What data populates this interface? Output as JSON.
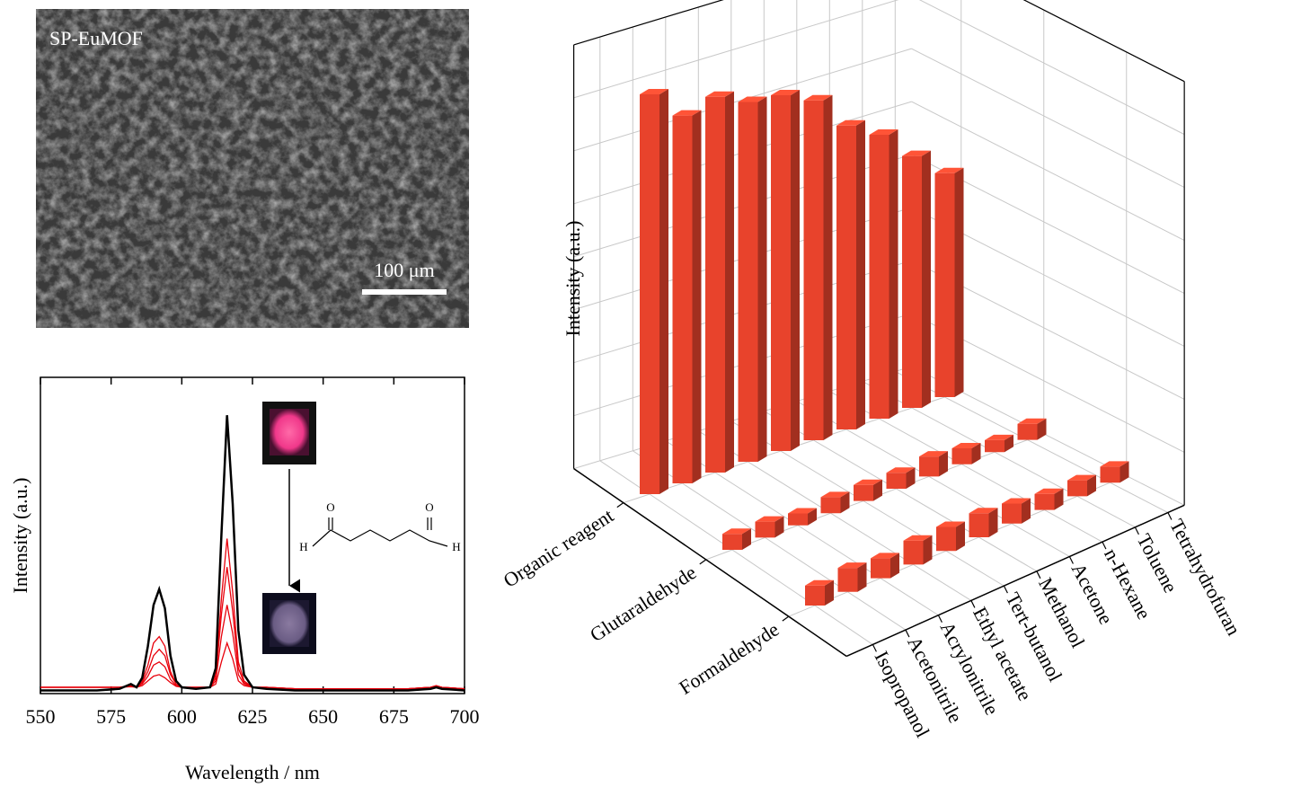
{
  "image": {
    "label": "SP-EuMOF",
    "scale_bar": "100 μm"
  },
  "chart_data": [
    {
      "type": "line",
      "xlabel": "Wavelength / nm",
      "ylabel": "Intensity (a.u.)",
      "xlim": [
        550,
        700
      ],
      "xticks": [
        550,
        575,
        600,
        625,
        650,
        675,
        700
      ],
      "ylim": [
        0,
        100
      ],
      "annotations": [
        "O",
        "O",
        "H",
        "H"
      ],
      "x": [
        550,
        560,
        570,
        578,
        582,
        584,
        586,
        588,
        590,
        592,
        594,
        596,
        598,
        600,
        605,
        610,
        612,
        614,
        616,
        618,
        620,
        622,
        625,
        630,
        640,
        660,
        680,
        688,
        690,
        692,
        700
      ],
      "series": [
        {
          "color": "#e8000b",
          "values": [
            2,
            2,
            2,
            2,
            2.5,
            2,
            4,
            9,
            16,
            18,
            15,
            7,
            3,
            2,
            2,
            2,
            6,
            30,
            49,
            32,
            10,
            4,
            2,
            2,
            1.5,
            1.5,
            1.5,
            2,
            2.5,
            2,
            1.5
          ]
        },
        {
          "color": "#e8000b",
          "values": [
            2,
            2,
            2,
            2,
            2.5,
            2,
            3.5,
            7,
            12,
            14,
            12,
            6,
            3,
            2,
            2,
            2,
            5,
            25,
            40,
            26,
            8,
            3.5,
            2,
            2,
            1.5,
            1.5,
            1.5,
            2,
            2.5,
            2,
            1.5
          ]
        },
        {
          "color": "#e8000b",
          "values": [
            2,
            2,
            2,
            2,
            2.3,
            2,
            3,
            5.5,
            9,
            10,
            8.5,
            4.5,
            2.5,
            2,
            2,
            2,
            4,
            18,
            28,
            19,
            6,
            3,
            2,
            2,
            1.5,
            1.5,
            1.5,
            2,
            2.3,
            2,
            1.5
          ]
        },
        {
          "color": "#e8000b",
          "values": [
            2,
            2,
            2,
            2,
            2.2,
            2,
            2.5,
            4,
            5.5,
            6,
            5,
            3.5,
            2.3,
            2,
            2,
            2,
            3,
            10,
            16,
            11,
            4,
            2.5,
            2,
            2,
            1.5,
            1.5,
            1.5,
            2,
            2.2,
            2,
            1.5
          ]
        },
        {
          "color": "#000000",
          "values": [
            1,
            1,
            1,
            1.5,
            3,
            2,
            5,
            15,
            28,
            33,
            27,
            12,
            4,
            2,
            1.5,
            2,
            8,
            50,
            88,
            60,
            20,
            6,
            2,
            1.5,
            1,
            1,
            1,
            1.5,
            2,
            1.5,
            1
          ]
        }
      ]
    },
    {
      "type": "bar3d",
      "zlabel": "Intensity (a.u.)",
      "zlim": [
        0,
        100
      ],
      "categories": [
        "Isopropanol",
        "Acetonitrile",
        "Acrylonitrile",
        "Ethyl acetate",
        "Tert-butanol",
        "Methanol",
        "Acetone",
        "n-Hexane",
        "Toluene",
        "Tetrahydrofuran"
      ],
      "series": [
        {
          "name": "Organic reagent",
          "color": "#e8432c",
          "values": [
            100,
            92,
            94,
            90,
            89,
            85,
            76,
            71,
            63,
            56
          ]
        },
        {
          "name": "Glutaraldehyde",
          "color": "#e8432c",
          "values": [
            4,
            4,
            3,
            4,
            4,
            4,
            5,
            4,
            3,
            4
          ]
        },
        {
          "name": "Formaldehyde",
          "color": "#e8432c",
          "values": [
            5,
            6,
            5,
            6,
            6,
            6,
            5,
            4,
            4,
            4
          ]
        }
      ]
    }
  ]
}
